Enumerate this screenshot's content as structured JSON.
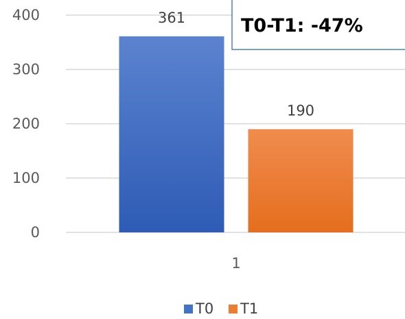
{
  "chart_data": {
    "type": "bar",
    "categories": [
      "1"
    ],
    "series": [
      {
        "name": "T0",
        "values": [
          361
        ],
        "color": "#4472C4"
      },
      {
        "name": "T1",
        "values": [
          190
        ],
        "color": "#ED7D31"
      }
    ],
    "ylim": [
      0,
      400
    ],
    "yticks": [
      0,
      100,
      200,
      300,
      400
    ],
    "grid": true,
    "legend": "bottom",
    "annotation": "T0-T1: -47%"
  }
}
